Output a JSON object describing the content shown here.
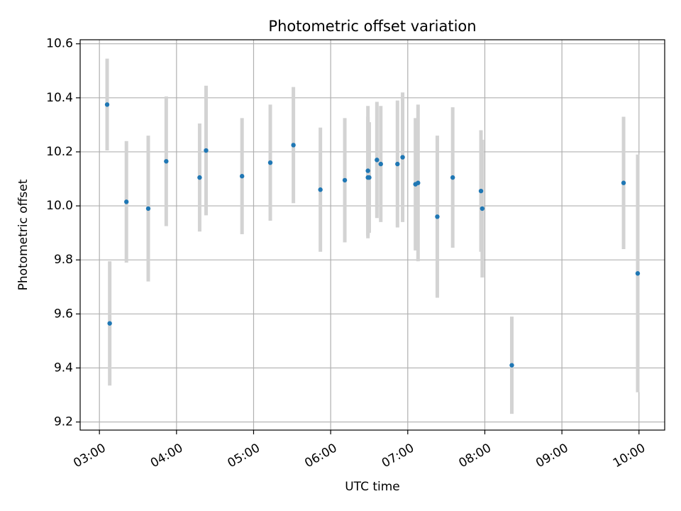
{
  "chart_data": {
    "type": "scatter",
    "title": "Photometric offset variation",
    "xlabel": "UTC time",
    "ylabel": "Photometric offset",
    "x_type": "time",
    "xlim": [
      "02:45",
      "10:20"
    ],
    "ylim": [
      9.17,
      10.615
    ],
    "x_ticks": [
      "03:00",
      "04:00",
      "05:00",
      "06:00",
      "07:00",
      "08:00",
      "09:00",
      "10:00"
    ],
    "y_ticks": [
      9.2,
      9.4,
      9.6,
      9.8,
      10.0,
      10.2,
      10.4,
      10.6
    ],
    "y_tick_labels": [
      "9.2",
      "9.4",
      "9.6",
      "9.8",
      "10.0",
      "10.2",
      "10.4",
      "10.6"
    ],
    "grid": true,
    "marker_color": "#1f77b4",
    "errorbar_color": "#d3d3d3",
    "grid_color": "#b0b0b0",
    "series": [
      {
        "points": [
          {
            "x": "03:06",
            "y": 10.375,
            "err": 0.17
          },
          {
            "x": "03:08",
            "y": 9.565,
            "err": 0.23
          },
          {
            "x": "03:21",
            "y": 10.015,
            "err": 0.225
          },
          {
            "x": "03:38",
            "y": 9.99,
            "err": 0.27
          },
          {
            "x": "03:52",
            "y": 10.165,
            "err": 0.24
          },
          {
            "x": "04:18",
            "y": 10.105,
            "err": 0.2
          },
          {
            "x": "04:23",
            "y": 10.205,
            "err": 0.24
          },
          {
            "x": "04:51",
            "y": 10.11,
            "err": 0.215
          },
          {
            "x": "05:13",
            "y": 10.16,
            "err": 0.215
          },
          {
            "x": "05:31",
            "y": 10.225,
            "err": 0.215
          },
          {
            "x": "05:52",
            "y": 10.06,
            "err": 0.23
          },
          {
            "x": "06:11",
            "y": 10.095,
            "err": 0.23
          },
          {
            "x": "06:29",
            "y": 10.13,
            "err": 0.24
          },
          {
            "x": "06:29",
            "y": 10.105,
            "err": 0.225
          },
          {
            "x": "06:30",
            "y": 10.105,
            "err": 0.205
          },
          {
            "x": "06:36",
            "y": 10.17,
            "err": 0.215
          },
          {
            "x": "06:39",
            "y": 10.155,
            "err": 0.215
          },
          {
            "x": "06:52",
            "y": 10.155,
            "err": 0.235
          },
          {
            "x": "06:56",
            "y": 10.18,
            "err": 0.24
          },
          {
            "x": "07:06",
            "y": 10.08,
            "err": 0.245
          },
          {
            "x": "07:08",
            "y": 10.085,
            "err": 0.29
          },
          {
            "x": "07:23",
            "y": 9.96,
            "err": 0.3
          },
          {
            "x": "07:35",
            "y": 10.105,
            "err": 0.26
          },
          {
            "x": "07:57",
            "y": 10.055,
            "err": 0.225
          },
          {
            "x": "07:58",
            "y": 9.99,
            "err": 0.255
          },
          {
            "x": "08:21",
            "y": 9.41,
            "err": 0.18
          },
          {
            "x": "09:48",
            "y": 10.085,
            "err": 0.245
          },
          {
            "x": "09:59",
            "y": 9.75,
            "err": 0.44
          }
        ]
      }
    ]
  }
}
